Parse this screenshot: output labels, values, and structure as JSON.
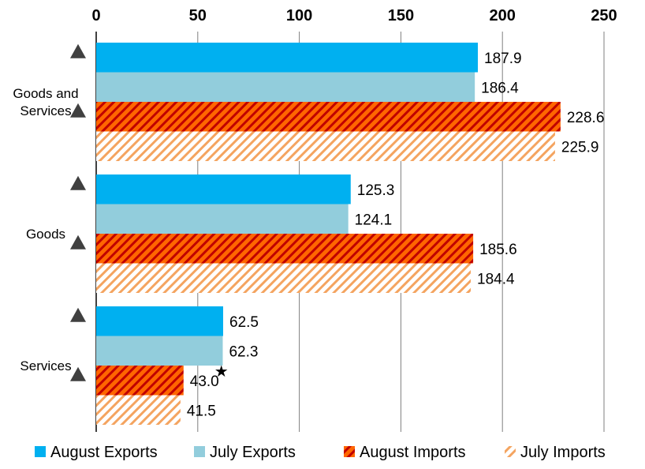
{
  "chart_data": {
    "type": "bar",
    "orientation": "horizontal",
    "xlim": [
      0,
      250
    ],
    "x_ticks": [
      "0",
      "50",
      "100",
      "150",
      "200",
      "250"
    ],
    "categories": [
      {
        "lines": [
          "Goods and",
          "Services"
        ]
      },
      {
        "lines": [
          "Goods"
        ]
      },
      {
        "lines": [
          "Services"
        ]
      }
    ],
    "series": [
      {
        "name": "August Exports",
        "values": [
          187.9,
          125.3,
          62.5
        ],
        "labels": [
          "187.9",
          "125.3",
          "62.5"
        ],
        "color": "#00b0f0",
        "pattern": "solid"
      },
      {
        "name": "July Exports",
        "values": [
          186.4,
          124.1,
          62.3
        ],
        "labels": [
          "186.4",
          "124.1",
          "62.3"
        ],
        "color": "#92cddc",
        "pattern": "solid"
      },
      {
        "name": "August Imports",
        "values": [
          228.6,
          185.6,
          43.0
        ],
        "labels": [
          "228.6",
          "185.6",
          "43.0"
        ],
        "color": "#ff6600",
        "pattern": "hatch-dense"
      },
      {
        "name": "July Imports",
        "values": [
          225.9,
          184.4,
          41.5
        ],
        "labels": [
          "225.9",
          "184.4",
          "41.5"
        ],
        "color": "#f4a460",
        "pattern": "hatch-light"
      }
    ],
    "markers": [
      {
        "category_index": 0,
        "series_index": 0,
        "symbol": "triangle-up"
      },
      {
        "category_index": 0,
        "series_index": 2,
        "symbol": "triangle-up"
      },
      {
        "category_index": 1,
        "series_index": 0,
        "symbol": "triangle-up"
      },
      {
        "category_index": 1,
        "series_index": 2,
        "symbol": "triangle-up"
      },
      {
        "category_index": 2,
        "series_index": 0,
        "symbol": "triangle-up"
      },
      {
        "category_index": 2,
        "series_index": 2,
        "symbol": "triangle-up"
      }
    ],
    "annotations": [
      {
        "category_index": 2,
        "series_index": 2,
        "symbol": "star",
        "text": "★"
      }
    ],
    "grid": "vertical",
    "legend_position": "bottom",
    "colors": {
      "grid": "#7f7f7f",
      "marker": "#404040",
      "hatch_dark": "#c00000",
      "hatch_light_bg": "#ffffff"
    }
  }
}
